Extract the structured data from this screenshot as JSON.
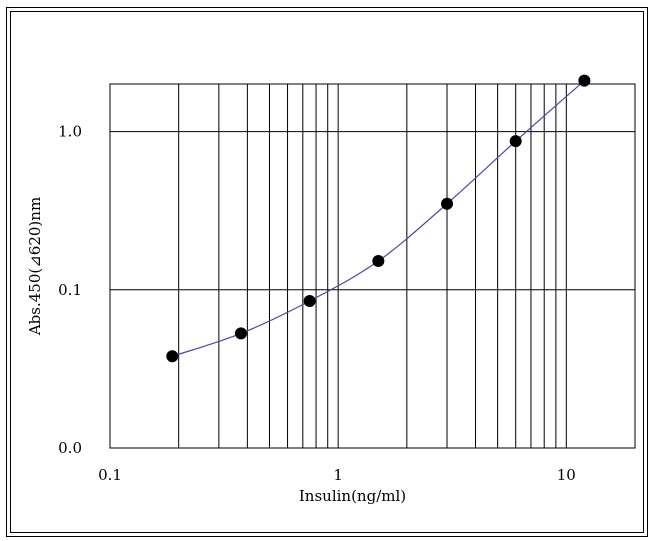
{
  "chart_data": {
    "type": "scatter",
    "title": "",
    "xlabel": "Insulin(ng/ml)",
    "ylabel": "Abs.450(⊿620)nm",
    "x_scale": "log",
    "y_scale": "log",
    "xlim": [
      0.1,
      20
    ],
    "ylim": [
      0.01,
      2.0
    ],
    "x_ticks": [
      {
        "value": 0.1,
        "label": "0.1"
      },
      {
        "value": 1,
        "label": "1"
      },
      {
        "value": 10,
        "label": "10"
      }
    ],
    "y_ticks": [
      {
        "value": 0.01,
        "label": "0.0"
      },
      {
        "value": 0.1,
        "label": "0.1"
      },
      {
        "value": 1,
        "label": "1.0"
      }
    ],
    "grid": true,
    "legend": "none",
    "series": [
      {
        "x": [
          0.1875,
          0.375,
          0.75,
          1.5,
          3,
          6,
          12
        ],
        "y": [
          0.038,
          0.053,
          0.085,
          0.152,
          0.35,
          0.87,
          2.1
        ]
      }
    ],
    "fit_curve": true,
    "colors": {
      "points": "#000000",
      "curve": "#4a4aa8",
      "grid": "#000000"
    }
  }
}
